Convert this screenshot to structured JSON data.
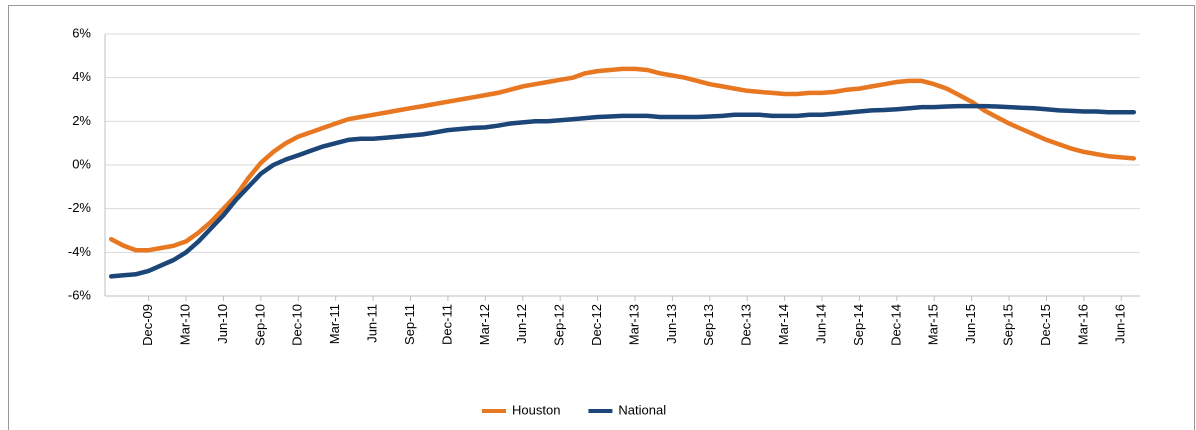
{
  "chart_data": {
    "type": "line",
    "categories": [
      null,
      null,
      null,
      "Dec-09",
      null,
      null,
      "Mar-10",
      null,
      null,
      "Jun-10",
      null,
      null,
      "Sep-10",
      null,
      null,
      "Dec-10",
      null,
      null,
      "Mar-11",
      null,
      null,
      "Jun-11",
      null,
      null,
      "Sep-11",
      null,
      null,
      "Dec-11",
      null,
      null,
      "Mar-12",
      null,
      null,
      "Jun-12",
      null,
      null,
      "Sep-12",
      null,
      null,
      "Dec-12",
      null,
      null,
      "Mar-13",
      null,
      null,
      "Jun-13",
      null,
      null,
      "Sep-13",
      null,
      null,
      "Dec-13",
      null,
      null,
      "Mar-14",
      null,
      null,
      "Jun-14",
      null,
      null,
      "Sep-14",
      null,
      null,
      "Dec-14",
      null,
      null,
      "Mar-15",
      null,
      null,
      "Jun-15",
      null,
      null,
      "Sep-15",
      null,
      null,
      "Dec-15",
      null,
      null,
      "Mar-16",
      null,
      null,
      "Jun-16",
      null
    ],
    "series": [
      {
        "name": "Houston",
        "color": "#e87722",
        "values": [
          -3.4,
          -3.7,
          -3.9,
          -3.9,
          -3.8,
          -3.7,
          -3.5,
          -3.1,
          -2.6,
          -2.0,
          -1.4,
          -0.6,
          0.1,
          0.6,
          1.0,
          1.3,
          1.5,
          1.7,
          1.9,
          2.1,
          2.2,
          2.3,
          2.4,
          2.5,
          2.6,
          2.7,
          2.8,
          2.9,
          3.0,
          3.1,
          3.2,
          3.3,
          3.45,
          3.6,
          3.7,
          3.8,
          3.9,
          4.0,
          4.2,
          4.3,
          4.35,
          4.4,
          4.4,
          4.35,
          4.2,
          4.1,
          4.0,
          3.85,
          3.7,
          3.6,
          3.5,
          3.4,
          3.35,
          3.3,
          3.25,
          3.25,
          3.3,
          3.3,
          3.35,
          3.45,
          3.5,
          3.6,
          3.7,
          3.8,
          3.85,
          3.85,
          3.7,
          3.5,
          3.2,
          2.9,
          2.5,
          2.2,
          1.9,
          1.65,
          1.4,
          1.15,
          0.95,
          0.75,
          0.6,
          0.5,
          0.4,
          0.35,
          0.3
        ]
      },
      {
        "name": "National",
        "color": "#1b4677",
        "values": [
          -5.1,
          -5.05,
          -5.0,
          -4.85,
          -4.6,
          -4.35,
          -4.0,
          -3.5,
          -2.9,
          -2.3,
          -1.6,
          -1.0,
          -0.4,
          0.0,
          0.25,
          0.45,
          0.65,
          0.85,
          1.0,
          1.15,
          1.2,
          1.2,
          1.25,
          1.3,
          1.35,
          1.4,
          1.5,
          1.6,
          1.65,
          1.7,
          1.72,
          1.8,
          1.9,
          1.95,
          2.0,
          2.0,
          2.05,
          2.1,
          2.15,
          2.2,
          2.22,
          2.25,
          2.25,
          2.25,
          2.2,
          2.2,
          2.2,
          2.2,
          2.22,
          2.25,
          2.3,
          2.3,
          2.3,
          2.25,
          2.25,
          2.25,
          2.3,
          2.3,
          2.35,
          2.4,
          2.45,
          2.5,
          2.52,
          2.55,
          2.6,
          2.65,
          2.65,
          2.68,
          2.7,
          2.7,
          2.7,
          2.68,
          2.65,
          2.62,
          2.6,
          2.55,
          2.5,
          2.48,
          2.45,
          2.45,
          2.42,
          2.42,
          2.42
        ]
      }
    ],
    "ylim": [
      -6,
      6
    ],
    "yticks": [
      {
        "value": -6,
        "label": "-6%"
      },
      {
        "value": -4,
        "label": "-4%"
      },
      {
        "value": -2,
        "label": "-2%"
      },
      {
        "value": 0,
        "label": "0%"
      },
      {
        "value": 2,
        "label": "2%"
      },
      {
        "value": 4,
        "label": "4%"
      },
      {
        "value": 6,
        "label": "6%"
      }
    ],
    "grid": true,
    "legend": "bottom"
  }
}
